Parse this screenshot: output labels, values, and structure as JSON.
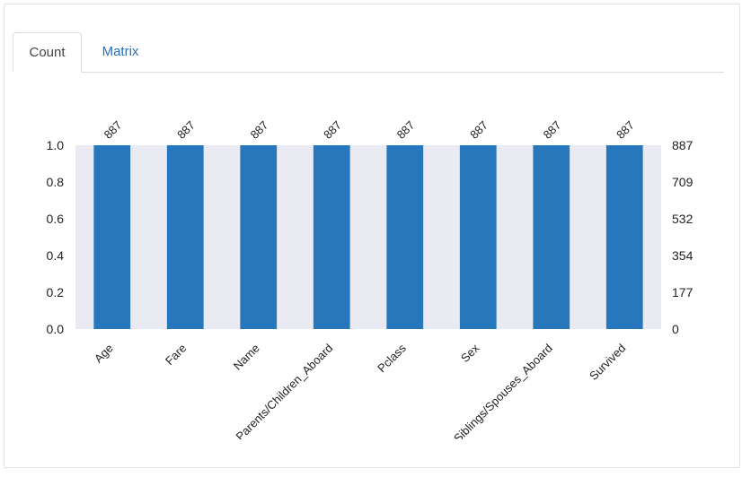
{
  "tabs": [
    {
      "label": "Count",
      "active": true
    },
    {
      "label": "Matrix",
      "active": false
    }
  ],
  "colors": {
    "bar": "#2677bb",
    "plot_bg": "#eaeaf2",
    "tab_link": "#2a6ebb",
    "tab_text": "#444444"
  },
  "chart_data": {
    "type": "bar",
    "categories": [
      "Age",
      "Fare",
      "Name",
      "Parents/Children_Aboard",
      "Pclass",
      "Sex",
      "Siblings/Spouses_Aboard",
      "Survived"
    ],
    "values": [
      1.0,
      1.0,
      1.0,
      1.0,
      1.0,
      1.0,
      1.0,
      1.0
    ],
    "counts": [
      887,
      887,
      887,
      887,
      887,
      887,
      887,
      887
    ],
    "ylim": [
      0,
      1.0
    ],
    "yticks": [
      "0.0",
      "0.2",
      "0.4",
      "0.6",
      "0.8",
      "1.0"
    ],
    "y2ticks": [
      "0",
      "177",
      "354",
      "532",
      "709",
      "887"
    ],
    "grid": false
  }
}
